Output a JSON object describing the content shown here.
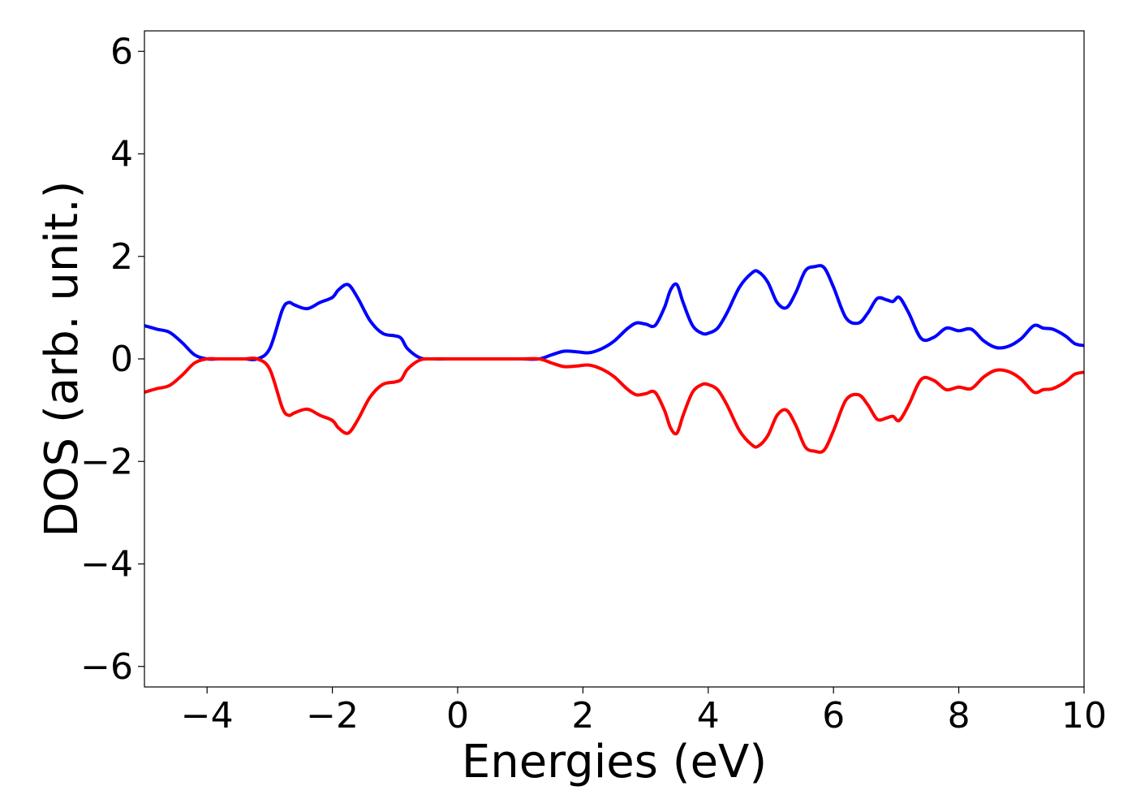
{
  "chart_data": {
    "type": "line",
    "title": "",
    "xlabel": "Energies (eV)",
    "ylabel": "DOS (arb. unit.)",
    "xlim": [
      -5,
      10
    ],
    "ylim": [
      -6.4,
      6.4
    ],
    "xticks": [
      -4,
      -2,
      0,
      2,
      4,
      6,
      8,
      10
    ],
    "xtick_labels": [
      "−4",
      "−2",
      "0",
      "2",
      "4",
      "6",
      "8",
      "10"
    ],
    "yticks": [
      -6,
      -4,
      -2,
      0,
      2,
      4,
      6
    ],
    "ytick_labels": [
      "−6",
      "−4",
      "−2",
      "0",
      "2",
      "4",
      "6"
    ],
    "grid": false,
    "legend": "none",
    "series": [
      {
        "color": "#0000ff",
        "x": [
          -5.0,
          -4.8,
          -4.6,
          -4.4,
          -4.2,
          -4.0,
          -3.8,
          -3.6,
          -3.4,
          -3.2,
          -3.0,
          -2.8,
          -2.7,
          -2.6,
          -2.4,
          -2.2,
          -2.0,
          -1.9,
          -1.75,
          -1.6,
          -1.4,
          -1.2,
          -1.0,
          -0.9,
          -0.8,
          -0.6,
          -0.4,
          0.0,
          0.5,
          1.0,
          1.3,
          1.5,
          1.7,
          1.9,
          2.1,
          2.3,
          2.5,
          2.7,
          2.85,
          3.0,
          3.15,
          3.3,
          3.4,
          3.5,
          3.6,
          3.75,
          3.9,
          4.0,
          4.15,
          4.3,
          4.5,
          4.7,
          4.8,
          4.95,
          5.1,
          5.25,
          5.4,
          5.55,
          5.7,
          5.85,
          6.0,
          6.2,
          6.4,
          6.55,
          6.7,
          6.85,
          6.95,
          7.05,
          7.2,
          7.4,
          7.6,
          7.8,
          8.0,
          8.2,
          8.4,
          8.6,
          8.8,
          9.0,
          9.2,
          9.35,
          9.5,
          9.7,
          9.85,
          10.0
        ],
        "y": [
          0.65,
          0.58,
          0.52,
          0.32,
          0.08,
          0.0,
          0.0,
          0.0,
          0.0,
          0.0,
          0.2,
          0.95,
          1.1,
          1.05,
          0.98,
          1.1,
          1.2,
          1.35,
          1.45,
          1.2,
          0.75,
          0.5,
          0.45,
          0.4,
          0.2,
          0.02,
          0.0,
          0.0,
          0.0,
          0.0,
          0.0,
          0.08,
          0.15,
          0.14,
          0.12,
          0.2,
          0.35,
          0.58,
          0.7,
          0.68,
          0.65,
          1.0,
          1.35,
          1.45,
          1.1,
          0.65,
          0.5,
          0.5,
          0.6,
          0.9,
          1.4,
          1.68,
          1.7,
          1.5,
          1.1,
          1.0,
          1.3,
          1.72,
          1.8,
          1.78,
          1.4,
          0.8,
          0.7,
          0.9,
          1.18,
          1.15,
          1.12,
          1.2,
          0.9,
          0.4,
          0.42,
          0.6,
          0.55,
          0.58,
          0.35,
          0.22,
          0.25,
          0.4,
          0.65,
          0.6,
          0.58,
          0.45,
          0.3,
          0.26
        ]
      },
      {
        "color": "#ff0000",
        "x": [
          -5.0,
          -4.8,
          -4.6,
          -4.4,
          -4.2,
          -4.0,
          -3.8,
          -3.6,
          -3.4,
          -3.2,
          -3.0,
          -2.8,
          -2.7,
          -2.6,
          -2.4,
          -2.2,
          -2.0,
          -1.9,
          -1.75,
          -1.6,
          -1.4,
          -1.2,
          -1.0,
          -0.9,
          -0.8,
          -0.6,
          -0.4,
          0.0,
          0.5,
          1.0,
          1.3,
          1.5,
          1.7,
          1.9,
          2.1,
          2.3,
          2.5,
          2.7,
          2.85,
          3.0,
          3.15,
          3.3,
          3.4,
          3.5,
          3.6,
          3.75,
          3.9,
          4.0,
          4.15,
          4.3,
          4.5,
          4.7,
          4.8,
          4.95,
          5.1,
          5.25,
          5.4,
          5.55,
          5.7,
          5.85,
          6.0,
          6.2,
          6.4,
          6.55,
          6.7,
          6.85,
          6.95,
          7.05,
          7.2,
          7.4,
          7.6,
          7.8,
          8.0,
          8.2,
          8.4,
          8.6,
          8.8,
          9.0,
          9.2,
          9.35,
          9.5,
          9.7,
          9.85,
          10.0
        ],
        "y": [
          -0.65,
          -0.58,
          -0.52,
          -0.32,
          -0.08,
          0.0,
          0.0,
          0.0,
          0.0,
          0.0,
          -0.2,
          -0.95,
          -1.1,
          -1.05,
          -0.98,
          -1.1,
          -1.2,
          -1.35,
          -1.45,
          -1.2,
          -0.75,
          -0.5,
          -0.45,
          -0.4,
          -0.2,
          -0.02,
          0.0,
          0.0,
          0.0,
          0.0,
          0.0,
          -0.08,
          -0.15,
          -0.14,
          -0.12,
          -0.2,
          -0.35,
          -0.58,
          -0.7,
          -0.68,
          -0.65,
          -1.0,
          -1.35,
          -1.45,
          -1.1,
          -0.65,
          -0.5,
          -0.5,
          -0.6,
          -0.9,
          -1.4,
          -1.68,
          -1.7,
          -1.5,
          -1.1,
          -1.0,
          -1.3,
          -1.72,
          -1.8,
          -1.78,
          -1.4,
          -0.8,
          -0.7,
          -0.9,
          -1.18,
          -1.15,
          -1.12,
          -1.2,
          -0.9,
          -0.4,
          -0.42,
          -0.6,
          -0.55,
          -0.58,
          -0.35,
          -0.22,
          -0.25,
          -0.4,
          -0.65,
          -0.6,
          -0.58,
          -0.45,
          -0.3,
          -0.26
        ]
      }
    ]
  }
}
